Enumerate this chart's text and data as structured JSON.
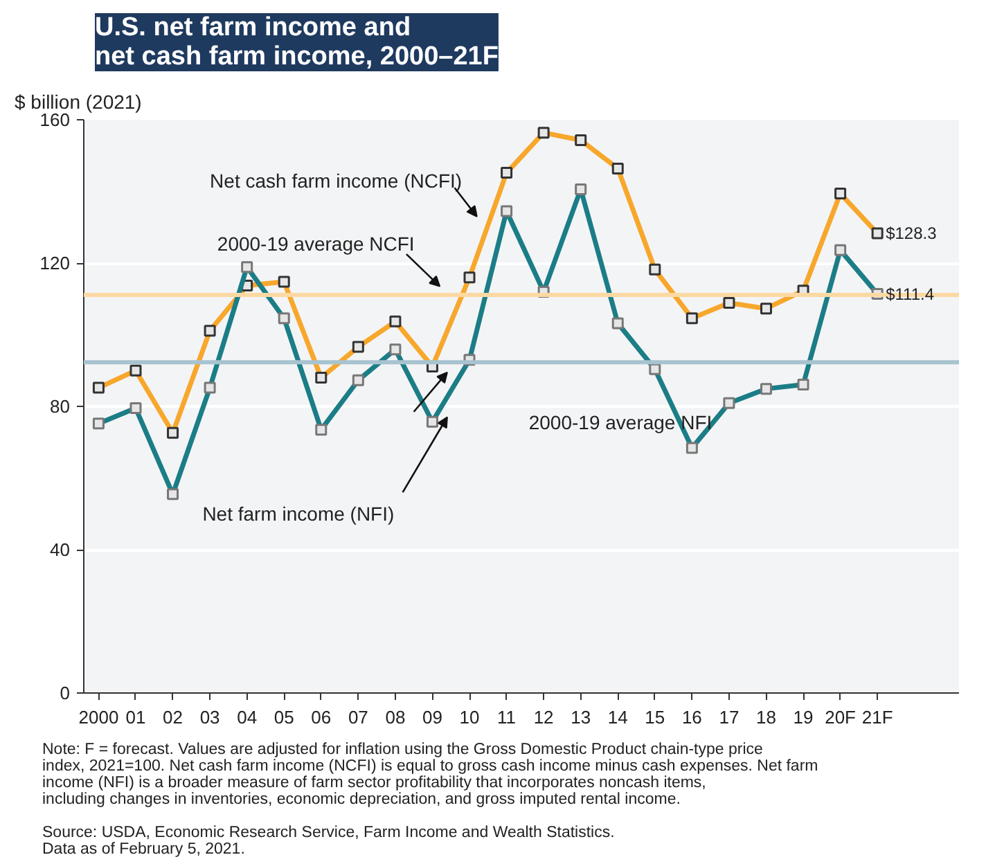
{
  "chart_data": {
    "type": "line",
    "title": "U.S. net farm income and\nnet cash farm income, 2000–21F",
    "ylabel": "$ billion (2021)",
    "categories": [
      "2000",
      "01",
      "02",
      "03",
      "04",
      "05",
      "06",
      "07",
      "08",
      "09",
      "10",
      "11",
      "12",
      "13",
      "14",
      "15",
      "16",
      "17",
      "18",
      "19",
      "20F",
      "21F"
    ],
    "series": [
      {
        "name": "Net cash farm income (NCFI)",
        "color": "#f7a72b",
        "values": [
          85.2,
          90.0,
          72.6,
          101.1,
          113.7,
          114.8,
          88.0,
          96.6,
          103.7,
          91.1,
          116.0,
          145.2,
          156.4,
          154.3,
          146.4,
          118.2,
          104.6,
          108.9,
          107.3,
          112.3,
          139.4,
          128.3
        ],
        "value_labels": [
          null,
          null,
          null,
          null,
          null,
          null,
          null,
          null,
          null,
          null,
          null,
          null,
          null,
          null,
          null,
          null,
          null,
          null,
          null,
          null,
          null,
          "$128.3"
        ]
      },
      {
        "name": "Net farm income (NFI)",
        "color": "#1b7d86",
        "values": [
          75.2,
          79.5,
          55.5,
          85.2,
          118.9,
          104.6,
          73.5,
          87.3,
          95.9,
          75.7,
          93.0,
          134.5,
          112.0,
          140.6,
          103.2,
          90.4,
          68.4,
          80.9,
          84.9,
          86.1,
          123.6,
          111.4
        ],
        "value_labels": [
          null,
          null,
          null,
          null,
          null,
          null,
          null,
          null,
          null,
          null,
          null,
          null,
          null,
          null,
          null,
          null,
          null,
          null,
          null,
          null,
          null,
          "$111.4"
        ]
      }
    ],
    "ref_lines": [
      {
        "axis": "y",
        "value": 111.1,
        "label": "2000-19 average NCFI",
        "color": "#fcd9a3"
      },
      {
        "axis": "y",
        "value": 92.3,
        "label": "2000-19 average NFI",
        "color": "#a7c3cf"
      }
    ],
    "ylim": [
      0,
      160
    ],
    "yticks": [
      0,
      40,
      80,
      120,
      160
    ],
    "grid": "y",
    "legend": false,
    "marker": "square",
    "line_style": "solid",
    "annotations": [
      "Note: F = forecast. Values are adjusted for inflation using the Gross Domestic Product chain-type price index, 2021=100. Net cash farm income (NCFI) is equal to gross cash income minus cash expenses. Net farm income (NFI) is a broader measure of farm sector profitability that incorporates noncash items, including changes in inventories, economic depreciation, and gross imputed rental income.",
      "Source: USDA, Economic Research Service, Farm Income and Wealth Statistics.\nData as of February 5, 2021."
    ]
  }
}
